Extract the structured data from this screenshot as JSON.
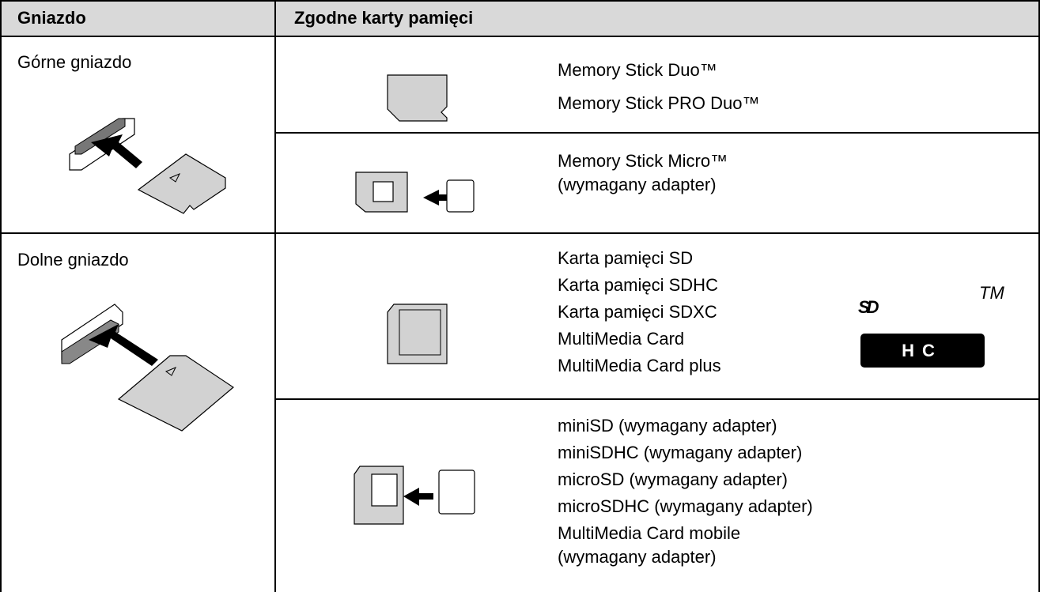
{
  "table": {
    "header": [
      "Gniazdo",
      "Zgodne karty pamięci"
    ],
    "rows": [
      {
        "slot": "Górne gniazdo",
        "cards": [
          {
            "lines": [
              "Memory Stick Duo™",
              "Memory Stick PRO Duo™"
            ]
          },
          {
            "lines": [
              "Memory Stick Micro™",
              "(wymagany adapter)"
            ]
          }
        ]
      },
      {
        "slot": "Dolne gniazdo",
        "cards": [
          {
            "lines": [
              "Karta pamięci SD",
              "Karta pamięci SDHC",
              "Karta pamięci SDXC",
              "MultiMedia Card",
              "MultiMedia Card plus"
            ]
          },
          {
            "lines": [
              "miniSD (wymagany adapter)",
              "miniSDHC (wymagany adapter)",
              "microSD (wymagany adapter)",
              "microSDHC (wymagany adapter)",
              "MultiMedia Card mobile",
              "(wymagany adapter)"
            ]
          }
        ]
      }
    ]
  },
  "logo": {
    "top": "SD",
    "bottom": "HC",
    "tm": "TM"
  }
}
